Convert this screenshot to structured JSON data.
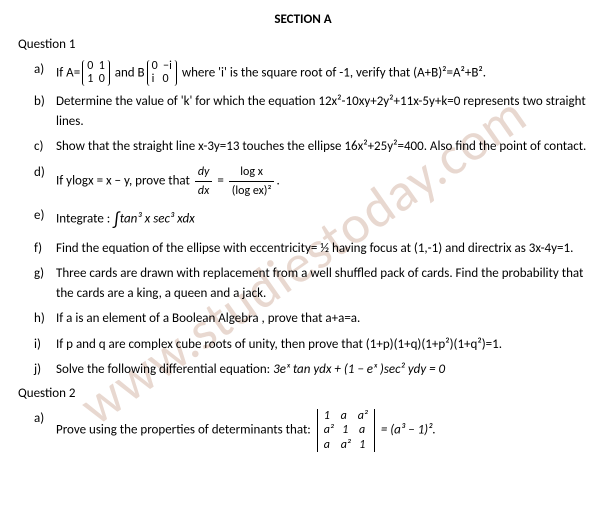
{
  "watermark": "www.studiestoday.com",
  "section_title": "SECTION A",
  "question1": {
    "title": "Question 1",
    "a": {
      "prefix": "If A=",
      "mid1": " and  B",
      "suffix": " where 'i' is the square root of -1, verify that (A+B)²=A²+B².",
      "matrixA": [
        "0  1",
        "1  0"
      ],
      "matrixB": [
        "0  −i",
        "i   0"
      ]
    },
    "b": "Determine the value of 'k' for which the equation 12x²-10xy+2y²+11x-5y+k=0 represents two straight lines.",
    "c": "Show that the straight line x-3y=13 touches the ellipse 16x²+25y²=400. Also find the point of contact.",
    "d": {
      "prefix": "If  ylogx = x − y, prove that ",
      "frac1_num": "dy",
      "frac1_den": "dx",
      "eq": " = ",
      "frac2_num": "log x",
      "frac2_den": "(log ex)²",
      "suffix": "."
    },
    "e": {
      "prefix": "Integrate : ",
      "expr": "tan³ x sec³ xdx"
    },
    "f": "Find the equation of the ellipse with eccentricity= ½  having focus at (1,-1) and directrix as 3x-4y=1.",
    "g": "Three cards are drawn with replacement from a well shuffled pack of cards. Find the probability that the cards are a king, a queen and a jack.",
    "h": "If a is an element of a Boolean Algebra , prove that a+a=a.",
    "i": "If p and q are complex cube roots of unity, then prove that (1+p)(1+q)(1+p²)(1+q²)=1.",
    "j": {
      "prefix": "Solve the following differential equation: ",
      "expr": "3eˣ tan ydx + (1 − eˣ )sec² ydy = 0"
    }
  },
  "question2": {
    "title": "Question 2",
    "a": {
      "prefix": "Prove using the properties of determinants that: ",
      "det": [
        "1    a    a²",
        "a²   1    a ",
        "a    a²   1 "
      ],
      "suffix": " = (a³ − 1)²."
    }
  }
}
